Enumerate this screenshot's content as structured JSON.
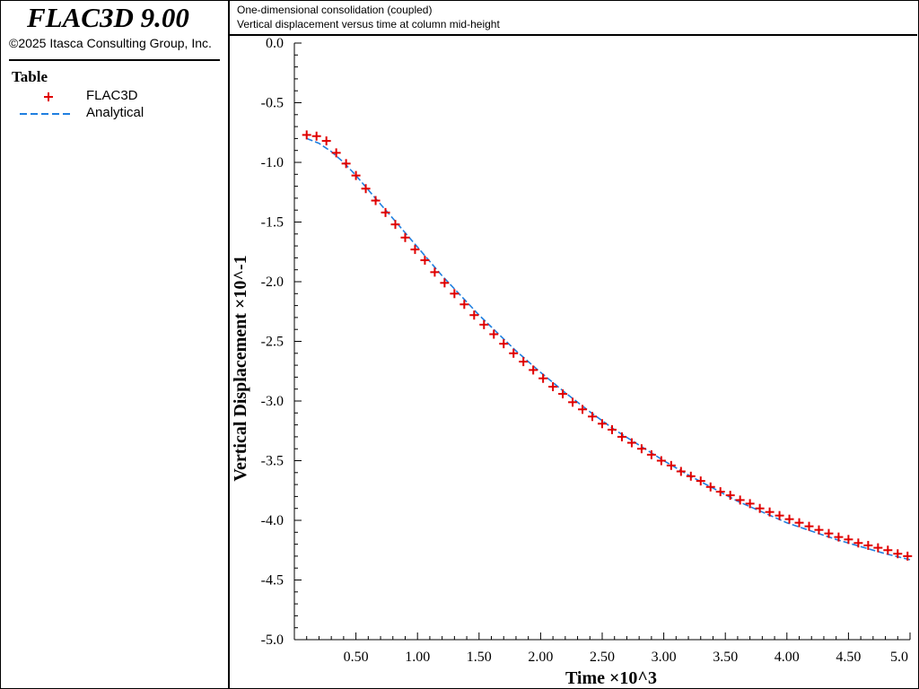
{
  "app": {
    "title": "FLAC3D 9.00",
    "copyright": "©2025 Itasca Consulting Group, Inc."
  },
  "legend": {
    "title": "Table",
    "items": [
      {
        "label": "FLAC3D",
        "marker": "plus",
        "color": "#e00000"
      },
      {
        "label": "Analytical",
        "marker": "dashed-line",
        "color": "#1f7fe0"
      }
    ]
  },
  "header": {
    "line1": "One-dimensional consolidation (coupled)",
    "line2": "Vertical displacement versus time at column mid-height"
  },
  "chart_data": {
    "type": "line",
    "xlabel": "Time ×10^3",
    "ylabel": "Vertical Displacement ×10^-1",
    "xlim": [
      0,
      5.0
    ],
    "ylim": [
      -5.0,
      0.0
    ],
    "x_ticks": [
      0.5,
      1.0,
      1.5,
      2.0,
      2.5,
      3.0,
      3.5,
      4.0,
      4.5,
      5.0
    ],
    "x_tick_labels": [
      "0.50",
      "1.00",
      "1.50",
      "2.00",
      "2.50",
      "3.00",
      "3.50",
      "4.00",
      "4.50",
      "5.0"
    ],
    "y_ticks": [
      0.0,
      -0.5,
      -1.0,
      -1.5,
      -2.0,
      -2.5,
      -3.0,
      -3.5,
      -4.0,
      -4.5,
      -5.0
    ],
    "y_tick_labels": [
      "0.0",
      "-0.5",
      "-1.0",
      "-1.5",
      "-2.0",
      "-2.5",
      "-3.0",
      "-3.5",
      "-4.0",
      "-4.5",
      "-5.0"
    ],
    "grid": false,
    "series": [
      {
        "name": "FLAC3D",
        "style": "markers",
        "color": "#e00000",
        "x": [
          0.1,
          0.18,
          0.26,
          0.34,
          0.42,
          0.5,
          0.58,
          0.66,
          0.74,
          0.82,
          0.9,
          0.98,
          1.06,
          1.14,
          1.22,
          1.3,
          1.38,
          1.46,
          1.54,
          1.62,
          1.7,
          1.78,
          1.86,
          1.94,
          2.02,
          2.1,
          2.18,
          2.26,
          2.34,
          2.42,
          2.5,
          2.58,
          2.66,
          2.74,
          2.82,
          2.9,
          2.98,
          3.06,
          3.14,
          3.22,
          3.3,
          3.38,
          3.46,
          3.54,
          3.62,
          3.7,
          3.78,
          3.86,
          3.94,
          4.02,
          4.1,
          4.18,
          4.26,
          4.34,
          4.42,
          4.5,
          4.58,
          4.66,
          4.74,
          4.82,
          4.9,
          4.98
        ],
        "y": [
          -0.77,
          -0.78,
          -0.82,
          -0.92,
          -1.01,
          -1.11,
          -1.22,
          -1.32,
          -1.42,
          -1.52,
          -1.63,
          -1.73,
          -1.82,
          -1.92,
          -2.01,
          -2.1,
          -2.19,
          -2.28,
          -2.36,
          -2.44,
          -2.52,
          -2.6,
          -2.67,
          -2.74,
          -2.81,
          -2.88,
          -2.94,
          -3.01,
          -3.07,
          -3.13,
          -3.19,
          -3.24,
          -3.3,
          -3.35,
          -3.4,
          -3.45,
          -3.5,
          -3.54,
          -3.59,
          -3.63,
          -3.67,
          -3.72,
          -3.76,
          -3.79,
          -3.83,
          -3.86,
          -3.9,
          -3.93,
          -3.96,
          -3.99,
          -4.02,
          -4.05,
          -4.08,
          -4.11,
          -4.14,
          -4.16,
          -4.19,
          -4.21,
          -4.23,
          -4.25,
          -4.28,
          -4.3
        ]
      },
      {
        "name": "Analytical",
        "style": "dashed",
        "color": "#1f7fe0",
        "x": [
          0.1,
          0.2,
          0.3,
          0.4,
          0.5,
          0.6,
          0.7,
          0.8,
          0.9,
          1.0,
          1.1,
          1.2,
          1.3,
          1.4,
          1.5,
          1.6,
          1.7,
          1.8,
          1.9,
          2.0,
          2.2,
          2.4,
          2.6,
          2.8,
          3.0,
          3.2,
          3.4,
          3.6,
          3.8,
          4.0,
          4.2,
          4.4,
          4.6,
          4.8,
          5.0
        ],
        "y": [
          -0.8,
          -0.84,
          -0.91,
          -1.0,
          -1.11,
          -1.23,
          -1.35,
          -1.47,
          -1.59,
          -1.71,
          -1.83,
          -1.95,
          -2.06,
          -2.17,
          -2.28,
          -2.38,
          -2.48,
          -2.58,
          -2.67,
          -2.76,
          -2.93,
          -3.09,
          -3.24,
          -3.37,
          -3.5,
          -3.62,
          -3.73,
          -3.84,
          -3.93,
          -4.02,
          -4.09,
          -4.16,
          -4.22,
          -4.28,
          -4.33
        ]
      }
    ]
  }
}
